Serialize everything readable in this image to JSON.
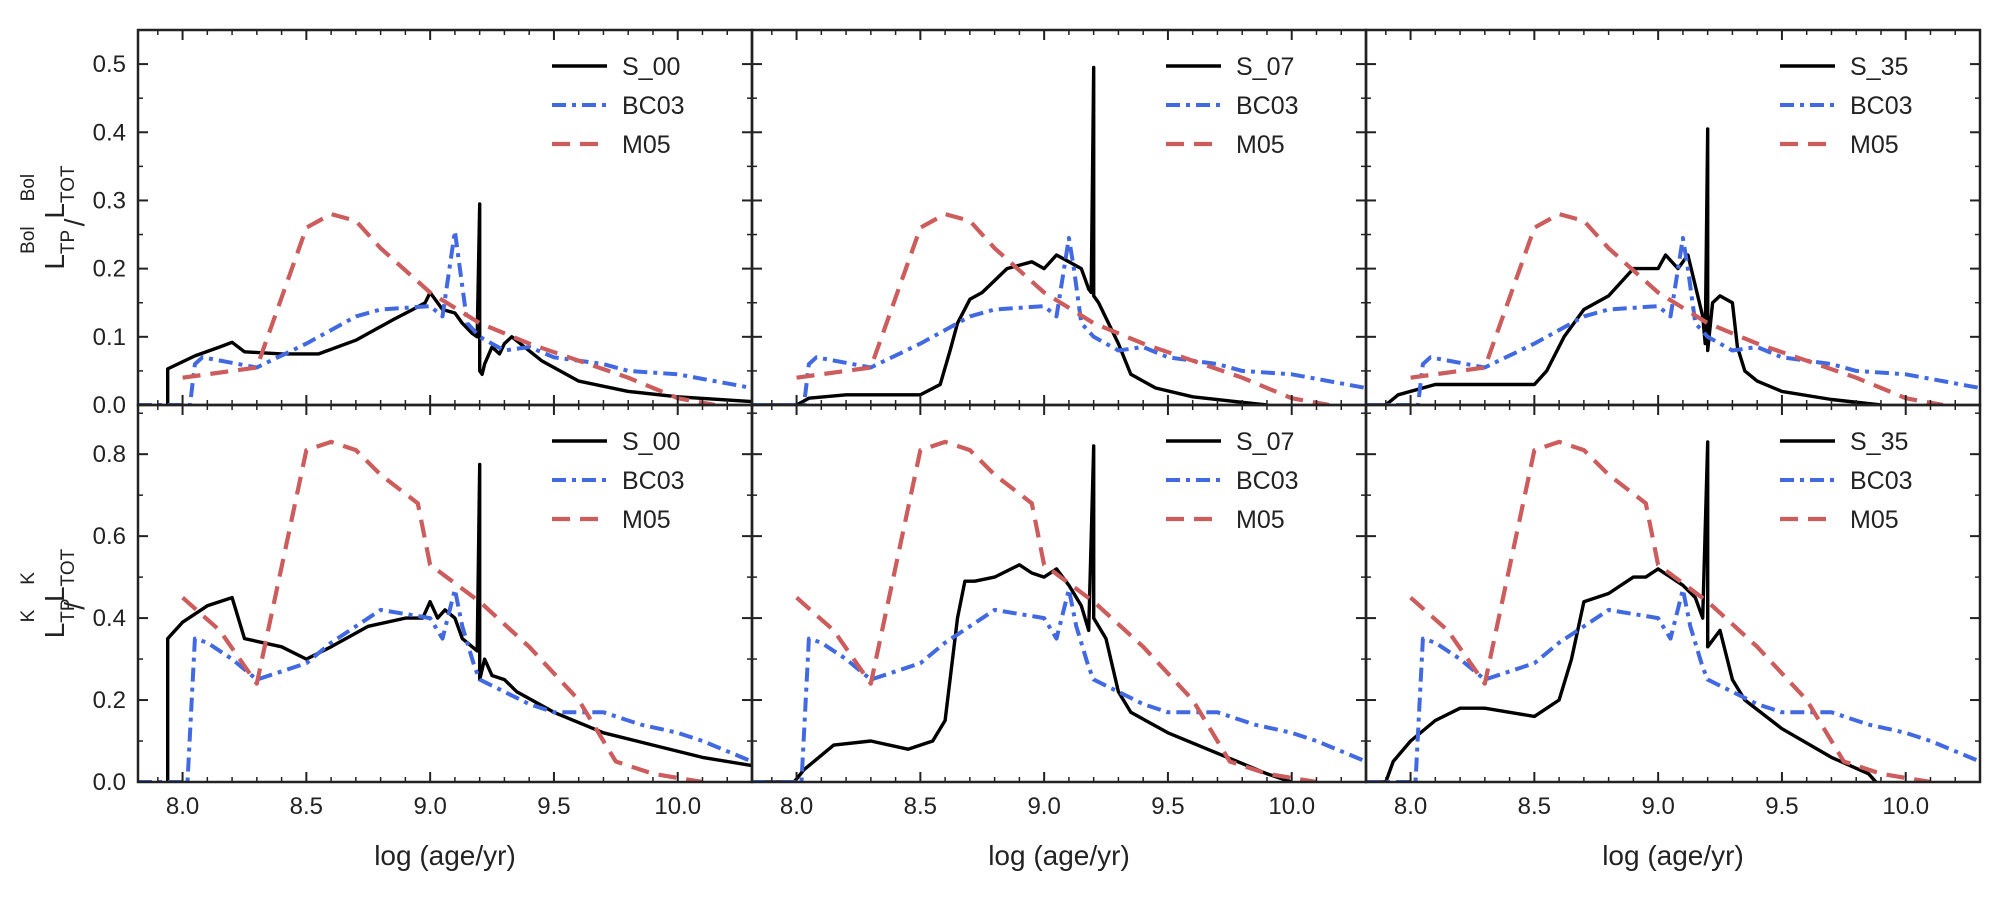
{
  "figure": {
    "xlabel": "log (age/yr)",
    "row_ylabels": [
      {
        "main": "L",
        "sub1": "TP",
        "sup1": "Bol",
        "slash": "/",
        "main2": "L",
        "sub2": "TOT",
        "sup2": "Bol"
      },
      {
        "main": "L",
        "sub1": "TP",
        "sup1": "K",
        "slash": "/",
        "main2": "L",
        "sub2": "TOT",
        "sup2": "K"
      }
    ],
    "xlim": [
      7.82,
      10.3
    ],
    "xticks": [
      "8.0",
      "8.5",
      "9.0",
      "9.5",
      "10.0"
    ],
    "xtick_values": [
      8.0,
      8.5,
      9.0,
      9.5,
      10.0
    ],
    "row_ylims": [
      [
        0,
        0.55
      ],
      [
        0,
        0.92
      ]
    ],
    "row_yticks": [
      [
        "0.0",
        "0.1",
        "0.2",
        "0.3",
        "0.4",
        "0.5"
      ],
      [
        "0.0",
        "0.2",
        "0.4",
        "0.6",
        "0.8"
      ]
    ],
    "row_ytick_values": [
      [
        0.0,
        0.1,
        0.2,
        0.3,
        0.4,
        0.5
      ],
      [
        0.0,
        0.2,
        0.4,
        0.6,
        0.8
      ]
    ],
    "colors": {
      "model": "#000000",
      "bc03": "#4169e1",
      "m05": "#cd5c5c",
      "axis": "#222222"
    },
    "legend_location": "top-right"
  },
  "chart_data": [
    {
      "type": "line",
      "row": 0,
      "col": 0,
      "ylabel": "L_TP^Bol / L_TOT^Bol",
      "xlabel": "",
      "ylim": [
        0,
        0.55
      ],
      "series": [
        {
          "name": "S_00",
          "style": "solid",
          "x": [
            7.94,
            7.94,
            8.05,
            8.15,
            8.2,
            8.25,
            8.4,
            8.55,
            8.7,
            8.85,
            8.93,
            8.98,
            9.0,
            9.03,
            9.05,
            9.1,
            9.13,
            9.17,
            9.19,
            9.2,
            9.2,
            9.21,
            9.22,
            9.25,
            9.28,
            9.3,
            9.33,
            9.45,
            9.6,
            9.8,
            10.0,
            10.3
          ],
          "y": [
            0.0,
            0.053,
            0.072,
            0.085,
            0.092,
            0.078,
            0.075,
            0.075,
            0.095,
            0.125,
            0.14,
            0.15,
            0.165,
            0.15,
            0.14,
            0.135,
            0.12,
            0.105,
            0.1,
            0.295,
            0.05,
            0.045,
            0.06,
            0.085,
            0.075,
            0.09,
            0.1,
            0.065,
            0.035,
            0.02,
            0.012,
            0.005
          ]
        },
        {
          "name": "BC03",
          "style": "dashdot",
          "x": [
            7.82,
            8.03,
            8.05,
            8.08,
            8.3,
            8.5,
            8.7,
            8.8,
            9.0,
            9.05,
            9.1,
            9.12,
            9.15,
            9.2,
            9.3,
            9.4,
            9.5,
            9.7,
            9.8,
            10.0,
            10.3
          ],
          "y": [
            0.0,
            0.0,
            0.06,
            0.07,
            0.055,
            0.09,
            0.13,
            0.14,
            0.145,
            0.13,
            0.255,
            0.2,
            0.12,
            0.1,
            0.08,
            0.085,
            0.07,
            0.06,
            0.05,
            0.045,
            0.025
          ]
        },
        {
          "name": "M05",
          "style": "dashed",
          "x": [
            8.0,
            8.3,
            8.5,
            8.6,
            8.7,
            8.8,
            9.0,
            9.2,
            9.4,
            9.6,
            9.8,
            10.0,
            10.15
          ],
          "y": [
            0.04,
            0.055,
            0.26,
            0.28,
            0.27,
            0.23,
            0.165,
            0.12,
            0.09,
            0.065,
            0.04,
            0.01,
            0.0
          ]
        }
      ]
    },
    {
      "type": "line",
      "row": 0,
      "col": 1,
      "ylabel": "",
      "xlabel": "",
      "ylim": [
        0,
        0.55
      ],
      "series": [
        {
          "name": "S_07",
          "style": "solid",
          "x": [
            7.82,
            8.0,
            8.05,
            8.2,
            8.5,
            8.58,
            8.62,
            8.65,
            8.7,
            8.75,
            8.85,
            8.95,
            9.0,
            9.05,
            9.1,
            9.15,
            9.18,
            9.19,
            9.2,
            9.2,
            9.22,
            9.3,
            9.35,
            9.45,
            9.6,
            9.8,
            9.9
          ],
          "y": [
            0.0,
            0.0,
            0.01,
            0.015,
            0.015,
            0.03,
            0.08,
            0.12,
            0.155,
            0.165,
            0.2,
            0.21,
            0.2,
            0.22,
            0.21,
            0.2,
            0.17,
            0.165,
            0.495,
            0.16,
            0.15,
            0.09,
            0.045,
            0.025,
            0.012,
            0.004,
            0.0
          ]
        },
        {
          "name": "BC03",
          "style": "dashdot",
          "x": [
            7.82,
            8.03,
            8.05,
            8.08,
            8.3,
            8.5,
            8.7,
            8.8,
            9.0,
            9.05,
            9.1,
            9.12,
            9.15,
            9.2,
            9.3,
            9.4,
            9.5,
            9.7,
            9.8,
            10.0,
            10.3
          ],
          "y": [
            0.0,
            0.0,
            0.06,
            0.07,
            0.055,
            0.09,
            0.13,
            0.14,
            0.145,
            0.13,
            0.245,
            0.2,
            0.12,
            0.1,
            0.08,
            0.085,
            0.07,
            0.06,
            0.05,
            0.045,
            0.025
          ]
        },
        {
          "name": "M05",
          "style": "dashed",
          "x": [
            8.0,
            8.3,
            8.5,
            8.6,
            8.7,
            8.8,
            9.0,
            9.2,
            9.4,
            9.6,
            9.8,
            10.0,
            10.15
          ],
          "y": [
            0.04,
            0.055,
            0.26,
            0.28,
            0.27,
            0.23,
            0.165,
            0.12,
            0.09,
            0.065,
            0.04,
            0.01,
            0.0
          ]
        }
      ]
    },
    {
      "type": "line",
      "row": 0,
      "col": 2,
      "ylabel": "",
      "xlabel": "",
      "ylim": [
        0,
        0.55
      ],
      "series": [
        {
          "name": "S_35",
          "style": "solid",
          "x": [
            7.82,
            7.9,
            7.95,
            8.1,
            8.3,
            8.5,
            8.55,
            8.62,
            8.7,
            8.8,
            8.9,
            9.0,
            9.03,
            9.08,
            9.12,
            9.18,
            9.19,
            9.2,
            9.2,
            9.22,
            9.25,
            9.3,
            9.32,
            9.35,
            9.4,
            9.5,
            9.7,
            9.85,
            9.9
          ],
          "y": [
            0.0,
            0.0,
            0.015,
            0.03,
            0.03,
            0.03,
            0.05,
            0.1,
            0.14,
            0.16,
            0.2,
            0.2,
            0.22,
            0.2,
            0.22,
            0.13,
            0.09,
            0.405,
            0.08,
            0.15,
            0.16,
            0.15,
            0.085,
            0.05,
            0.035,
            0.02,
            0.008,
            0.002,
            0.0
          ]
        },
        {
          "name": "BC03",
          "style": "dashdot",
          "x": [
            7.82,
            8.03,
            8.05,
            8.08,
            8.3,
            8.5,
            8.7,
            8.8,
            9.0,
            9.05,
            9.1,
            9.12,
            9.15,
            9.2,
            9.3,
            9.4,
            9.5,
            9.7,
            9.8,
            10.0,
            10.3
          ],
          "y": [
            0.0,
            0.0,
            0.06,
            0.07,
            0.055,
            0.09,
            0.13,
            0.14,
            0.145,
            0.13,
            0.245,
            0.2,
            0.12,
            0.1,
            0.08,
            0.085,
            0.07,
            0.06,
            0.05,
            0.045,
            0.025
          ]
        },
        {
          "name": "M05",
          "style": "dashed",
          "x": [
            8.0,
            8.3,
            8.5,
            8.6,
            8.7,
            8.8,
            9.0,
            9.2,
            9.4,
            9.6,
            9.8,
            10.0,
            10.15
          ],
          "y": [
            0.04,
            0.055,
            0.26,
            0.28,
            0.27,
            0.23,
            0.165,
            0.12,
            0.09,
            0.065,
            0.04,
            0.01,
            0.0
          ]
        }
      ]
    },
    {
      "type": "line",
      "row": 1,
      "col": 0,
      "ylabel": "L_TP^K / L_TOT^K",
      "xlabel": "log (age/yr)",
      "ylim": [
        0,
        0.92
      ],
      "series": [
        {
          "name": "S_00",
          "style": "solid",
          "x": [
            7.94,
            7.94,
            8.0,
            8.1,
            8.2,
            8.25,
            8.4,
            8.5,
            8.6,
            8.75,
            8.9,
            8.97,
            9.0,
            9.03,
            9.06,
            9.1,
            9.13,
            9.17,
            9.19,
            9.2,
            9.2,
            9.22,
            9.25,
            9.3,
            9.35,
            9.5,
            9.7,
            9.9,
            10.1,
            10.3
          ],
          "y": [
            0.0,
            0.35,
            0.39,
            0.43,
            0.45,
            0.35,
            0.33,
            0.3,
            0.33,
            0.38,
            0.4,
            0.4,
            0.44,
            0.4,
            0.42,
            0.4,
            0.35,
            0.33,
            0.32,
            0.775,
            0.25,
            0.3,
            0.26,
            0.25,
            0.22,
            0.17,
            0.12,
            0.09,
            0.06,
            0.04
          ]
        },
        {
          "name": "BC03",
          "style": "dashdot",
          "x": [
            7.82,
            8.02,
            8.05,
            8.1,
            8.2,
            8.3,
            8.5,
            8.6,
            8.7,
            8.8,
            9.0,
            9.05,
            9.1,
            9.13,
            9.18,
            9.2,
            9.3,
            9.4,
            9.5,
            9.7,
            9.85,
            10.0,
            10.1,
            10.3
          ],
          "y": [
            0.0,
            0.0,
            0.35,
            0.34,
            0.3,
            0.25,
            0.29,
            0.34,
            0.38,
            0.42,
            0.4,
            0.35,
            0.47,
            0.38,
            0.28,
            0.25,
            0.22,
            0.19,
            0.17,
            0.17,
            0.14,
            0.12,
            0.1,
            0.05
          ]
        },
        {
          "name": "M05",
          "style": "dashed",
          "x": [
            8.0,
            8.15,
            8.3,
            8.5,
            8.6,
            8.7,
            8.8,
            8.95,
            9.0,
            9.2,
            9.4,
            9.6,
            9.75,
            9.9,
            10.1
          ],
          "y": [
            0.45,
            0.37,
            0.24,
            0.81,
            0.83,
            0.81,
            0.75,
            0.68,
            0.53,
            0.44,
            0.33,
            0.2,
            0.05,
            0.02,
            0.0
          ]
        }
      ]
    },
    {
      "type": "line",
      "row": 1,
      "col": 1,
      "ylabel": "",
      "xlabel": "log (age/yr)",
      "ylim": [
        0,
        0.92
      ],
      "series": [
        {
          "name": "S_07",
          "style": "solid",
          "x": [
            7.82,
            7.99,
            8.03,
            8.15,
            8.3,
            8.45,
            8.55,
            8.6,
            8.65,
            8.68,
            8.72,
            8.8,
            8.9,
            8.95,
            9.0,
            9.05,
            9.1,
            9.15,
            9.18,
            9.2,
            9.2,
            9.25,
            9.3,
            9.35,
            9.5,
            9.7,
            9.9,
            10.0
          ],
          "y": [
            0.0,
            0.0,
            0.03,
            0.09,
            0.1,
            0.08,
            0.1,
            0.15,
            0.4,
            0.49,
            0.49,
            0.5,
            0.53,
            0.51,
            0.5,
            0.52,
            0.48,
            0.43,
            0.37,
            0.82,
            0.4,
            0.35,
            0.22,
            0.17,
            0.12,
            0.07,
            0.02,
            0.0
          ]
        },
        {
          "name": "BC03",
          "style": "dashdot",
          "x": [
            7.82,
            8.02,
            8.05,
            8.1,
            8.2,
            8.3,
            8.5,
            8.6,
            8.7,
            8.8,
            9.0,
            9.05,
            9.1,
            9.13,
            9.18,
            9.2,
            9.3,
            9.4,
            9.5,
            9.7,
            9.85,
            10.0,
            10.1,
            10.3
          ],
          "y": [
            0.0,
            0.0,
            0.35,
            0.34,
            0.3,
            0.25,
            0.29,
            0.34,
            0.38,
            0.42,
            0.4,
            0.35,
            0.47,
            0.38,
            0.28,
            0.25,
            0.22,
            0.19,
            0.17,
            0.17,
            0.14,
            0.12,
            0.1,
            0.05
          ]
        },
        {
          "name": "M05",
          "style": "dashed",
          "x": [
            8.0,
            8.15,
            8.3,
            8.5,
            8.6,
            8.7,
            8.8,
            8.95,
            9.0,
            9.2,
            9.4,
            9.6,
            9.75,
            9.9,
            10.1
          ],
          "y": [
            0.45,
            0.37,
            0.24,
            0.81,
            0.83,
            0.81,
            0.75,
            0.68,
            0.53,
            0.44,
            0.33,
            0.2,
            0.05,
            0.02,
            0.0
          ]
        }
      ]
    },
    {
      "type": "line",
      "row": 1,
      "col": 2,
      "ylabel": "",
      "xlabel": "log (age/yr)",
      "ylim": [
        0,
        0.92
      ],
      "series": [
        {
          "name": "S_35",
          "style": "solid",
          "x": [
            7.82,
            7.9,
            7.93,
            8.0,
            8.1,
            8.2,
            8.3,
            8.4,
            8.5,
            8.6,
            8.65,
            8.7,
            8.8,
            8.9,
            8.95,
            9.0,
            9.05,
            9.1,
            9.15,
            9.18,
            9.2,
            9.2,
            9.25,
            9.3,
            9.35,
            9.5,
            9.7,
            9.85,
            9.88
          ],
          "y": [
            0.0,
            0.0,
            0.05,
            0.1,
            0.15,
            0.18,
            0.18,
            0.17,
            0.16,
            0.2,
            0.3,
            0.44,
            0.46,
            0.5,
            0.5,
            0.52,
            0.5,
            0.48,
            0.45,
            0.4,
            0.83,
            0.33,
            0.37,
            0.25,
            0.2,
            0.13,
            0.06,
            0.02,
            0.0
          ]
        },
        {
          "name": "BC03",
          "style": "dashdot",
          "x": [
            7.82,
            8.02,
            8.05,
            8.1,
            8.2,
            8.3,
            8.5,
            8.6,
            8.7,
            8.8,
            9.0,
            9.05,
            9.1,
            9.13,
            9.18,
            9.2,
            9.3,
            9.4,
            9.5,
            9.7,
            9.85,
            10.0,
            10.1,
            10.3
          ],
          "y": [
            0.0,
            0.0,
            0.35,
            0.34,
            0.3,
            0.25,
            0.29,
            0.34,
            0.38,
            0.42,
            0.4,
            0.35,
            0.47,
            0.38,
            0.28,
            0.25,
            0.22,
            0.19,
            0.17,
            0.17,
            0.14,
            0.12,
            0.1,
            0.05
          ]
        },
        {
          "name": "M05",
          "style": "dashed",
          "x": [
            8.0,
            8.15,
            8.3,
            8.5,
            8.6,
            8.7,
            8.8,
            8.95,
            9.0,
            9.2,
            9.4,
            9.6,
            9.75,
            9.9,
            10.1
          ],
          "y": [
            0.45,
            0.37,
            0.24,
            0.81,
            0.83,
            0.81,
            0.75,
            0.68,
            0.53,
            0.44,
            0.33,
            0.2,
            0.05,
            0.02,
            0.0
          ]
        }
      ]
    }
  ]
}
